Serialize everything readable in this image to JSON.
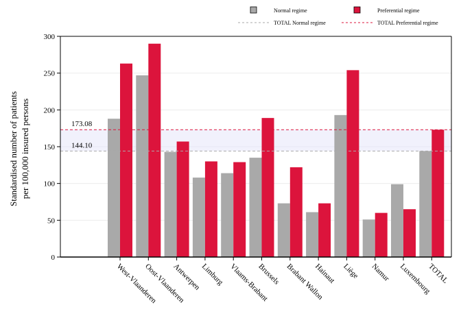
{
  "chart_data": {
    "type": "bar",
    "title": "",
    "ylabel_lines": [
      "Standardised number of patients",
      "per 100,000 insured persons"
    ],
    "xlabel": "",
    "ylim": [
      0,
      300
    ],
    "yticks": [
      0,
      50,
      100,
      150,
      200,
      250,
      300
    ],
    "categories": [
      "West-Vlaanderen",
      "Oost-Vlaanderen",
      "Antwerpen",
      "Limburg",
      "Vlaams-Brabant",
      "Brussels",
      "Brabant Wallon",
      "Hainaut",
      "Liège",
      "Namur",
      "Luxembourg",
      "TOTAL"
    ],
    "series": [
      {
        "name": "Normal regime",
        "color": "#a9a9a9",
        "values": [
          188,
          247,
          143,
          108,
          114,
          135,
          73,
          61,
          193,
          51,
          99,
          144.1
        ]
      },
      {
        "name": "Preferential regime",
        "color": "#dc143c",
        "values": [
          263,
          290,
          157,
          130,
          129,
          189,
          122,
          73,
          254,
          60,
          65,
          173.08
        ]
      }
    ],
    "reference_lines": [
      {
        "name": "TOTAL Normal regime",
        "value": 144.1,
        "label": "144.10",
        "color": "#a9a9a9",
        "style": "dashed"
      },
      {
        "name": "TOTAL Preferential regime",
        "value": 173.08,
        "label": "173.08",
        "color": "#dc143c",
        "style": "dashed"
      }
    ],
    "band_color": "#e6e6fa",
    "grid": true,
    "legend_position": "top"
  }
}
